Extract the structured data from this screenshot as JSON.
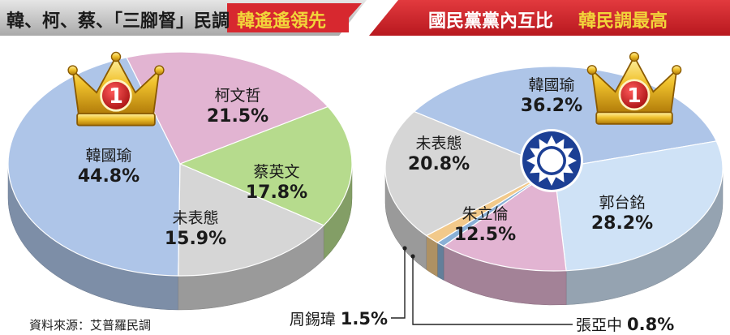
{
  "banners": {
    "left": {
      "text": "韓、柯、蔡、「三腳督」民調",
      "highlight": "韓遙遙領先"
    },
    "right": {
      "text": "國民黨黨內互比",
      "highlight": "韓民調最高"
    }
  },
  "source": "資料來源：艾普羅民調",
  "colors": {
    "banner_red": "#d7282f",
    "banner_gray": "#bdbdbd",
    "highlight_yellow": "#f2d53a",
    "kmt_blue": "#1c3f94"
  },
  "icons": {
    "crown": "crown-icon",
    "rank": "1",
    "party": "kmt-emblem-icon"
  },
  "chart_data": [
    {
      "type": "pie",
      "slices": [
        {
          "label": "韓國瑜",
          "value": 44.8,
          "display": "44.8%",
          "color": "#aec5e8"
        },
        {
          "label": "柯文哲",
          "value": 21.5,
          "display": "21.5%",
          "color": "#e2b4d2"
        },
        {
          "label": "蔡英文",
          "value": 17.8,
          "display": "17.8%",
          "color": "#b6db8d"
        },
        {
          "label": "未表態",
          "value": 15.9,
          "display": "15.9%",
          "color": "#d6d6d6"
        }
      ]
    },
    {
      "type": "pie",
      "slices": [
        {
          "label": "韓國瑜",
          "value": 36.2,
          "display": "36.2%",
          "color": "#aec5e8"
        },
        {
          "label": "郭台銘",
          "value": 28.2,
          "display": "28.2%",
          "color": "#cfe2f6"
        },
        {
          "label": "朱立倫",
          "value": 12.5,
          "display": "12.5%",
          "color": "#e2b4d2"
        },
        {
          "label": "張亞中",
          "value": 0.8,
          "display": "0.8%",
          "color": "#8ab0d6"
        },
        {
          "label": "周錫瑋",
          "value": 1.5,
          "display": "1.5%",
          "color": "#f2c98a"
        },
        {
          "label": "未表態",
          "value": 20.8,
          "display": "20.8%",
          "color": "#d6d6d6"
        }
      ]
    }
  ]
}
